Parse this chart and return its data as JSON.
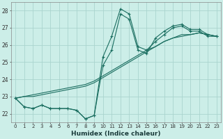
{
  "xlabel": "Humidex (Indice chaleur)",
  "background_color": "#cceee8",
  "grid_color": "#aad4ce",
  "line_color": "#1a6e60",
  "xlim": [
    -0.5,
    23.5
  ],
  "ylim": [
    21.5,
    28.5
  ],
  "yticks": [
    22,
    23,
    24,
    25,
    26,
    27,
    28
  ],
  "xticks": [
    0,
    1,
    2,
    3,
    4,
    5,
    6,
    7,
    8,
    9,
    10,
    11,
    12,
    13,
    14,
    15,
    16,
    17,
    18,
    19,
    20,
    21,
    22,
    23
  ],
  "series": [
    {
      "y": [
        22.9,
        22.4,
        22.3,
        22.5,
        22.3,
        22.3,
        22.3,
        22.2,
        21.7,
        21.9,
        25.3,
        26.5,
        28.1,
        27.8,
        25.9,
        25.7,
        26.2,
        26.6,
        27.0,
        27.1,
        26.8,
        26.8,
        26.5,
        26.5
      ],
      "marker": true
    },
    {
      "y": [
        22.9,
        22.4,
        22.3,
        22.5,
        22.3,
        22.3,
        22.3,
        22.2,
        21.7,
        21.9,
        24.8,
        25.7,
        27.8,
        27.5,
        25.7,
        25.5,
        26.4,
        26.8,
        27.1,
        27.2,
        26.9,
        26.9,
        26.6,
        26.5
      ],
      "marker": true
    },
    {
      "y": [
        22.9,
        23.0,
        23.0,
        23.1,
        23.2,
        23.3,
        23.4,
        23.5,
        23.6,
        23.8,
        24.1,
        24.4,
        24.7,
        25.0,
        25.3,
        25.6,
        25.9,
        26.2,
        26.4,
        26.5,
        26.6,
        26.7,
        26.6,
        26.5
      ],
      "marker": false
    },
    {
      "y": [
        22.9,
        23.0,
        23.1,
        23.2,
        23.3,
        23.4,
        23.5,
        23.6,
        23.7,
        23.9,
        24.2,
        24.5,
        24.8,
        25.1,
        25.4,
        25.7,
        25.9,
        26.2,
        26.4,
        26.6,
        26.6,
        26.7,
        26.6,
        26.5
      ],
      "marker": false
    }
  ]
}
